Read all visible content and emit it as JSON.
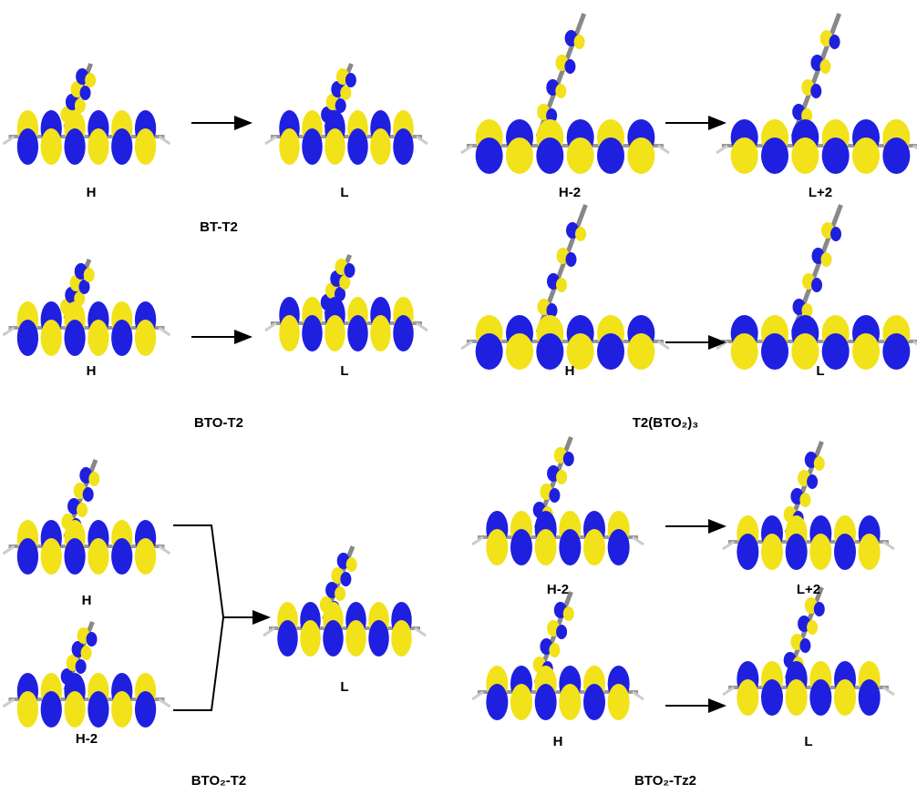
{
  "panels": [
    {
      "name": "BT-T2",
      "transitions": [
        {
          "from": "H",
          "to": "L"
        }
      ]
    },
    {
      "name": "BTO-T2",
      "transitions": [
        {
          "from": "H",
          "to": "L"
        }
      ]
    },
    {
      "name": "T2(BTO₂)₃",
      "transitions": [
        {
          "from": "H-2",
          "to": "L+2"
        },
        {
          "from": "H",
          "to": "L"
        }
      ]
    },
    {
      "name": "BTO₂-T2",
      "transitions": [
        {
          "from": [
            "H",
            "H-2"
          ],
          "to": "L"
        }
      ]
    },
    {
      "name": "BTO₂-Tz2",
      "transitions": [
        {
          "from": "H-2",
          "to": "L+2"
        },
        {
          "from": "H",
          "to": "L"
        }
      ]
    }
  ]
}
